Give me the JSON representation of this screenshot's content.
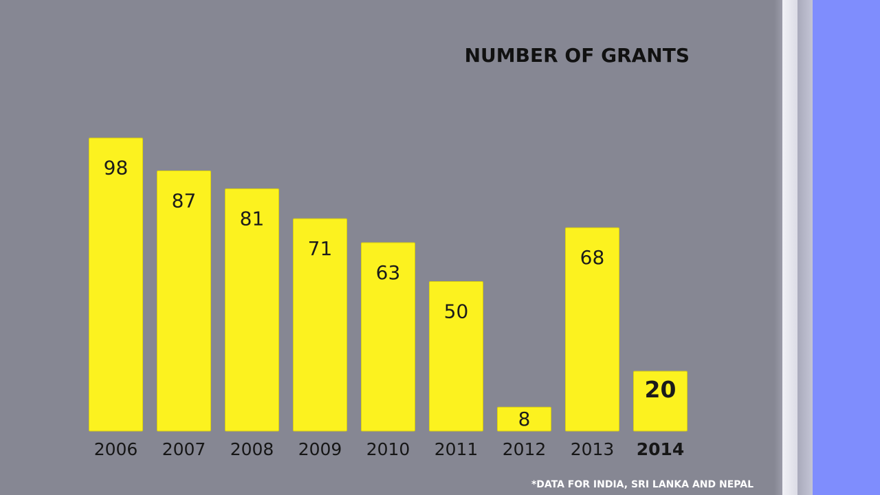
{
  "chart_data": {
    "type": "bar",
    "title": "NUMBER OF GRANTS",
    "footnote": "*DATA FOR INDIA, SRI LANKA AND NEPAL",
    "categories": [
      "2006",
      "2007",
      "2008",
      "2009",
      "2010",
      "2011",
      "2012",
      "2013",
      "2014"
    ],
    "values": [
      98,
      87,
      81,
      71,
      63,
      50,
      8,
      68,
      20
    ],
    "value_labels": [
      "98",
      "87",
      "81",
      "71",
      "63",
      "50",
      "8",
      "68",
      "20"
    ],
    "highlight_category": "2014",
    "xlabel": "",
    "ylabel": "",
    "ylim": [
      0,
      100
    ],
    "grid": false,
    "legend": "none",
    "bar_color": "#fcf21f"
  },
  "colors": {
    "background": "#868793",
    "side_panel": "#7f8dfd",
    "text": "#111111",
    "footnote": "#ffffff"
  }
}
